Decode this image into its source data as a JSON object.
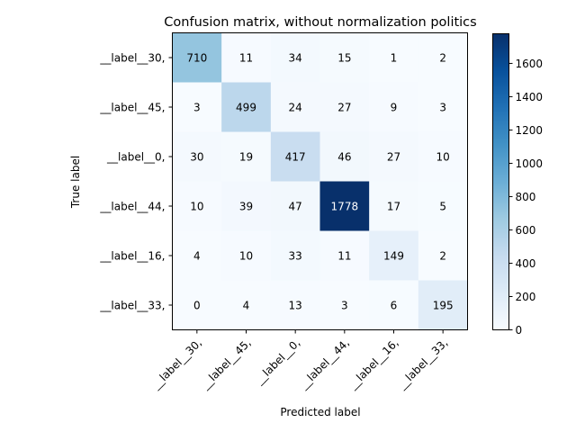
{
  "chart_data": {
    "type": "heatmap",
    "title": "Confusion matrix, without normalization politics",
    "xlabel": "Predicted label",
    "ylabel": "True label",
    "x_categories": [
      "__label__30,",
      "__label__45,",
      "__label__0,",
      "__label__44,",
      "__label__16,",
      "__label__33,"
    ],
    "y_categories": [
      "__label__30,",
      "__label__45,",
      "__label__0,",
      "__label__44,",
      "__label__16,",
      "__label__33,"
    ],
    "values": [
      [
        710,
        11,
        34,
        15,
        1,
        2
      ],
      [
        3,
        499,
        24,
        27,
        9,
        3
      ],
      [
        30,
        19,
        417,
        46,
        27,
        10
      ],
      [
        10,
        39,
        47,
        1778,
        17,
        5
      ],
      [
        4,
        10,
        33,
        11,
        149,
        2
      ],
      [
        0,
        4,
        13,
        3,
        6,
        195
      ]
    ],
    "colormap": "Blues",
    "vmin": 0,
    "vmax": 1778,
    "colorbar": {
      "ticks": [
        0,
        200,
        400,
        600,
        800,
        1000,
        1200,
        1400,
        1600
      ],
      "range": [
        0,
        1778
      ]
    },
    "text_color_threshold": 889,
    "grid": false,
    "legend": "colorbar-right"
  }
}
